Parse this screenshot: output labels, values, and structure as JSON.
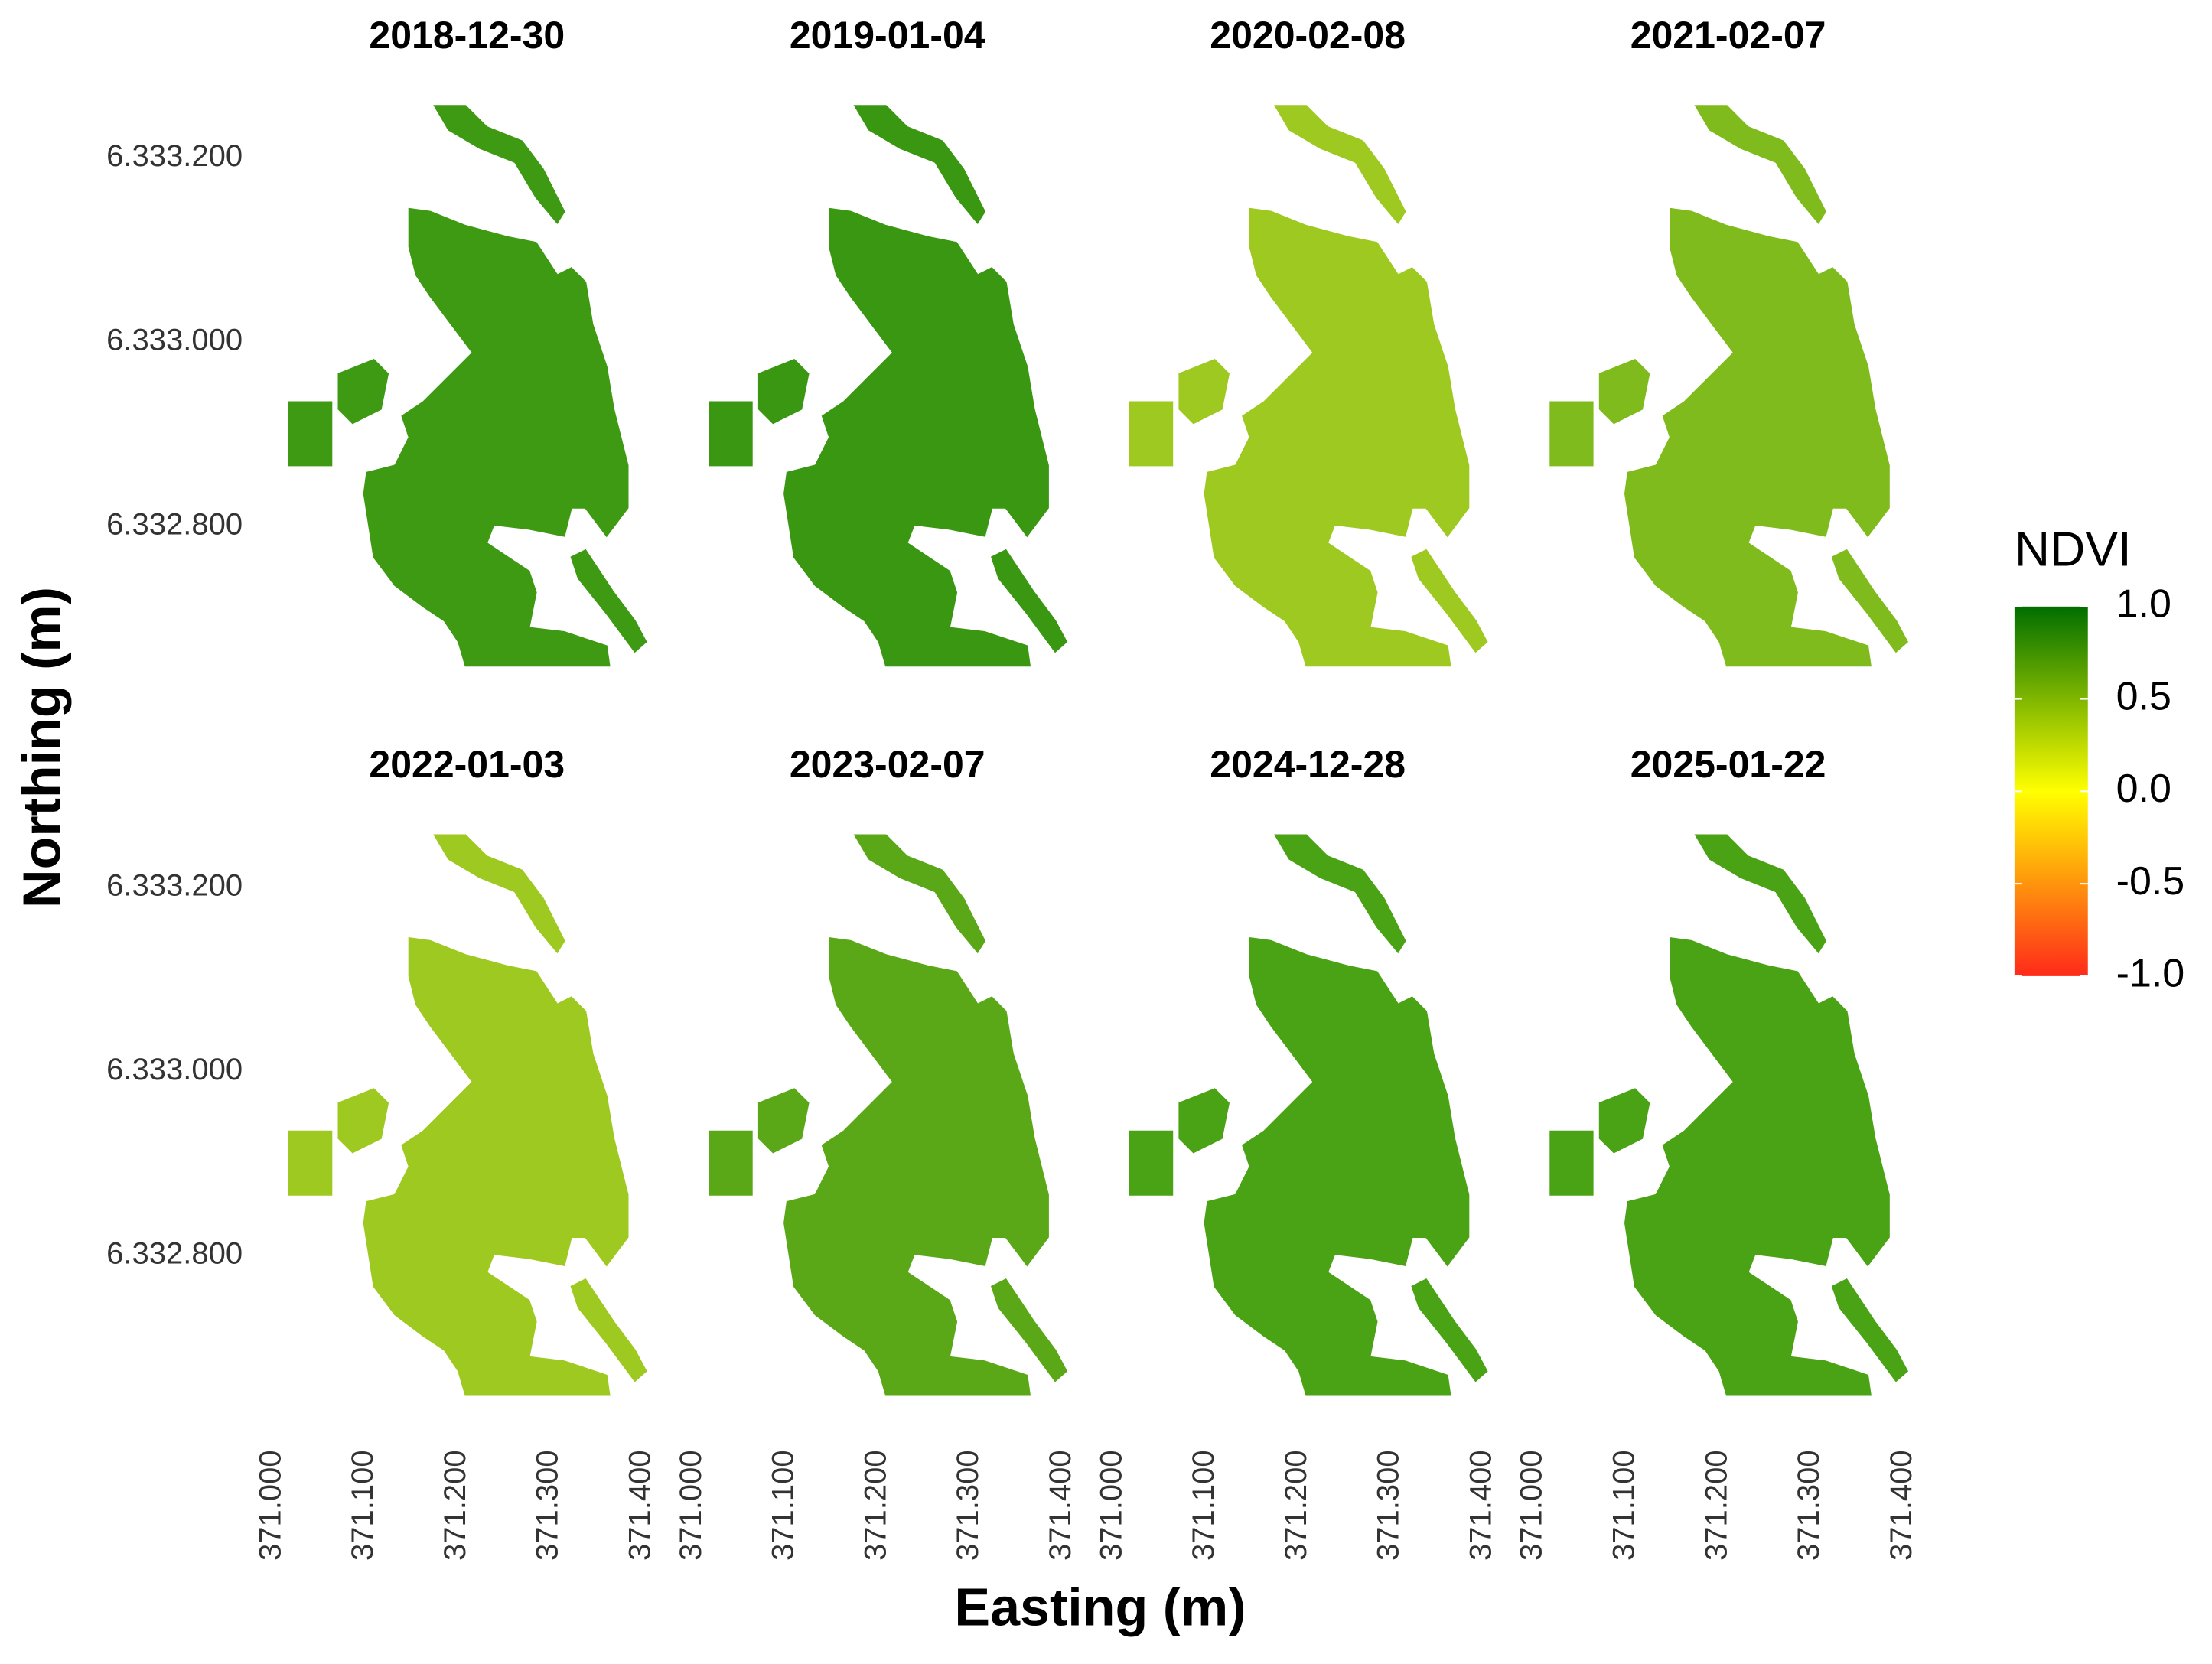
{
  "chart_data": {
    "type": "raster",
    "xlabel": "Easting (m)",
    "ylabel": "Northing (m)",
    "xlim": [
      371000,
      371400
    ],
    "ylim": [
      6332640,
      6333260
    ],
    "xticks": [
      {
        "value": 371000,
        "label": "371.000"
      },
      {
        "value": 371100,
        "label": "371.100"
      },
      {
        "value": 371200,
        "label": "371.200"
      },
      {
        "value": 371300,
        "label": "371.300"
      },
      {
        "value": 371400,
        "label": "371.400"
      }
    ],
    "yticks": [
      {
        "value": 6332800,
        "label": "6.332.800"
      },
      {
        "value": 6333000,
        "label": "6.333.000"
      },
      {
        "value": 6333200,
        "label": "6.333.200"
      }
    ],
    "panels": [
      {
        "title": "2018-12-30",
        "color": "#3f9a13"
      },
      {
        "title": "2019-01-04",
        "color": "#3a9712"
      },
      {
        "title": "2020-02-08",
        "color": "#9ec920"
      },
      {
        "title": "2021-02-07",
        "color": "#80bb1d"
      },
      {
        "title": "2022-01-03",
        "color": "#9ec920"
      },
      {
        "title": "2023-02-07",
        "color": "#5aa817"
      },
      {
        "title": "2024-12-28",
        "color": "#4aa215"
      },
      {
        "title": "2025-01-22",
        "color": "#4aa215"
      }
    ],
    "colorbar": {
      "title": "NDVI",
      "lim": [
        -1,
        1
      ],
      "colors": [
        "#ff2a1a",
        "#ffff00",
        "#006e00"
      ],
      "ticks": [
        {
          "value": -1,
          "label": "-1.0"
        },
        -0.5,
        {
          "value": 0,
          "label": "0.0"
        },
        0.5,
        {
          "value": 1,
          "label": "1.0"
        }
      ]
    }
  }
}
